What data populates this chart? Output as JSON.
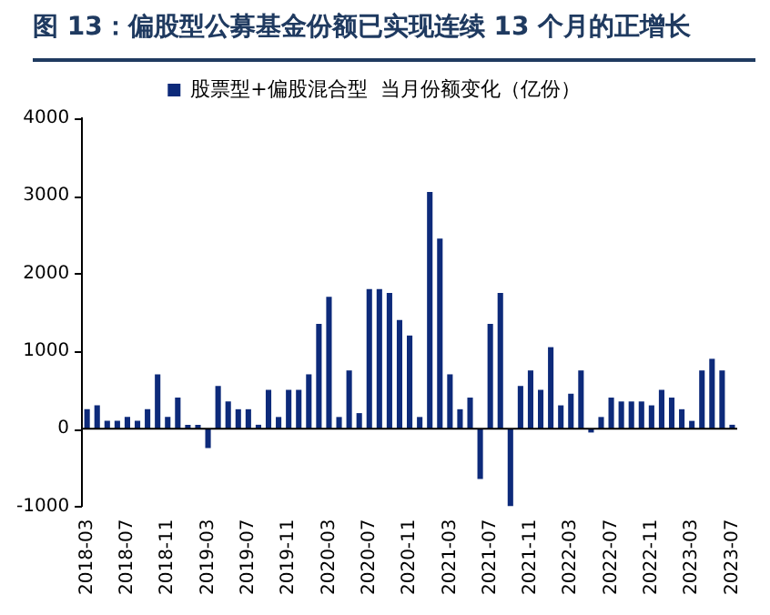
{
  "chart_data": {
    "type": "bar",
    "title": "图 13：偏股型公募基金份额已实现连续 13 个月的正增长",
    "categories": [
      "2018-03",
      null,
      null,
      null,
      "2018-07",
      null,
      null,
      null,
      "2018-11",
      null,
      null,
      null,
      "2019-03",
      null,
      null,
      null,
      "2019-07",
      null,
      null,
      null,
      "2019-11",
      null,
      null,
      null,
      "2020-03",
      null,
      null,
      null,
      "2020-07",
      null,
      null,
      null,
      "2020-11",
      null,
      null,
      null,
      "2021-03",
      null,
      null,
      null,
      "2021-07",
      null,
      null,
      null,
      "2021-11",
      null,
      null,
      null,
      "2022-03",
      null,
      null,
      null,
      "2022-07",
      null,
      null,
      null,
      "2022-11",
      null,
      null,
      null,
      "2023-03",
      null,
      null,
      null,
      "2023-07"
    ],
    "series": [
      {
        "name": "股票型+偏股混合型  当月份额变化（亿份）",
        "color": "#0d2a7a",
        "values": [
          250,
          300,
          100,
          100,
          150,
          100,
          250,
          700,
          150,
          400,
          50,
          50,
          -250,
          550,
          350,
          250,
          250,
          50,
          500,
          150,
          500,
          500,
          700,
          1350,
          1700,
          150,
          750,
          200,
          1800,
          1800,
          1750,
          1400,
          1200,
          150,
          3050,
          2450,
          700,
          250,
          400,
          -650,
          1350,
          1750,
          -1000,
          550,
          750,
          500,
          1050,
          300,
          450,
          750,
          -50,
          150,
          400,
          350,
          350,
          350,
          300,
          500,
          400,
          250,
          100,
          750,
          900,
          750,
          50
        ]
      }
    ],
    "ylim": [
      -1000,
      4000
    ],
    "yticks": [
      -1000,
      0,
      1000,
      2000,
      3000,
      4000
    ],
    "ref_lines": [
      {
        "axis": "y",
        "value": 0,
        "color": "#000000"
      }
    ],
    "grid": false,
    "legend": "top"
  }
}
